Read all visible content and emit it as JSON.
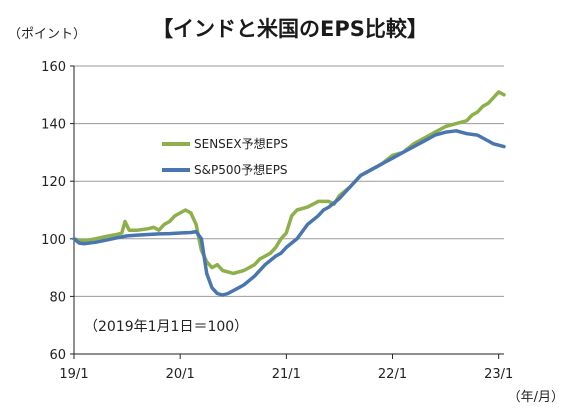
{
  "chart_data": {
    "type": "line",
    "title": "【インドと米国のEPS比較】",
    "ylabel": "（ポイント）",
    "xunit": "（年/月）",
    "note": "（2019年1月1日＝100）",
    "ylim": [
      60,
      160
    ],
    "yticks": [
      60,
      80,
      100,
      120,
      140,
      160
    ],
    "xlim": [
      2019.0,
      2023.05
    ],
    "xticks": [
      {
        "value": 2019.0,
        "label": "19/1"
      },
      {
        "value": 2020.0,
        "label": "20/1"
      },
      {
        "value": 2021.0,
        "label": "21/1"
      },
      {
        "value": 2022.0,
        "label": "22/1"
      },
      {
        "value": 2023.0,
        "label": "23/1"
      }
    ],
    "grid": true,
    "legend": "upper-left",
    "series": [
      {
        "name": "SENSEX予想EPS",
        "color": "#8DB04A",
        "points": [
          [
            2019.0,
            100
          ],
          [
            2019.05,
            99.5
          ],
          [
            2019.1,
            99.3
          ],
          [
            2019.2,
            100
          ],
          [
            2019.3,
            100.8
          ],
          [
            2019.4,
            101.5
          ],
          [
            2019.45,
            102
          ],
          [
            2019.48,
            106
          ],
          [
            2019.52,
            103
          ],
          [
            2019.6,
            103
          ],
          [
            2019.7,
            103.5
          ],
          [
            2019.75,
            104
          ],
          [
            2019.8,
            103
          ],
          [
            2019.85,
            105
          ],
          [
            2019.9,
            106
          ],
          [
            2019.95,
            108
          ],
          [
            2020.0,
            109
          ],
          [
            2020.05,
            110
          ],
          [
            2020.1,
            109
          ],
          [
            2020.15,
            105
          ],
          [
            2020.2,
            96
          ],
          [
            2020.25,
            92
          ],
          [
            2020.3,
            90
          ],
          [
            2020.35,
            91
          ],
          [
            2020.4,
            89
          ],
          [
            2020.45,
            88.5
          ],
          [
            2020.5,
            88
          ],
          [
            2020.55,
            88.5
          ],
          [
            2020.6,
            89
          ],
          [
            2020.65,
            90
          ],
          [
            2020.7,
            91
          ],
          [
            2020.75,
            93
          ],
          [
            2020.8,
            94
          ],
          [
            2020.85,
            95
          ],
          [
            2020.9,
            97
          ],
          [
            2020.95,
            100
          ],
          [
            2021.0,
            102
          ],
          [
            2021.05,
            108
          ],
          [
            2021.1,
            110
          ],
          [
            2021.2,
            111
          ],
          [
            2021.3,
            113
          ],
          [
            2021.4,
            113
          ],
          [
            2021.45,
            112
          ],
          [
            2021.5,
            115
          ],
          [
            2021.6,
            118
          ],
          [
            2021.7,
            122
          ],
          [
            2021.8,
            124
          ],
          [
            2021.9,
            126
          ],
          [
            2022.0,
            129
          ],
          [
            2022.1,
            130
          ],
          [
            2022.2,
            133
          ],
          [
            2022.3,
            135
          ],
          [
            2022.4,
            137
          ],
          [
            2022.5,
            139
          ],
          [
            2022.6,
            140
          ],
          [
            2022.7,
            141
          ],
          [
            2022.75,
            143
          ],
          [
            2022.8,
            144
          ],
          [
            2022.85,
            146
          ],
          [
            2022.9,
            147
          ],
          [
            2022.95,
            149
          ],
          [
            2023.0,
            151
          ],
          [
            2023.05,
            150
          ]
        ]
      },
      {
        "name": "S&P500予想EPS",
        "color": "#4A76B0",
        "points": [
          [
            2019.0,
            100
          ],
          [
            2019.05,
            98.5
          ],
          [
            2019.1,
            98.3
          ],
          [
            2019.2,
            98.8
          ],
          [
            2019.3,
            99.5
          ],
          [
            2019.4,
            100.3
          ],
          [
            2019.5,
            101
          ],
          [
            2019.6,
            101.3
          ],
          [
            2019.7,
            101.5
          ],
          [
            2019.8,
            101.7
          ],
          [
            2019.9,
            101.8
          ],
          [
            2020.0,
            102
          ],
          [
            2020.1,
            102.2
          ],
          [
            2020.15,
            102.5
          ],
          [
            2020.2,
            100
          ],
          [
            2020.25,
            88
          ],
          [
            2020.3,
            83
          ],
          [
            2020.35,
            81
          ],
          [
            2020.4,
            80.5
          ],
          [
            2020.45,
            81
          ],
          [
            2020.5,
            82
          ],
          [
            2020.55,
            83
          ],
          [
            2020.6,
            84
          ],
          [
            2020.7,
            87
          ],
          [
            2020.8,
            91
          ],
          [
            2020.9,
            94
          ],
          [
            2020.95,
            95
          ],
          [
            2021.0,
            97
          ],
          [
            2021.1,
            100
          ],
          [
            2021.2,
            105
          ],
          [
            2021.3,
            108
          ],
          [
            2021.35,
            110
          ],
          [
            2021.4,
            111
          ],
          [
            2021.5,
            114
          ],
          [
            2021.6,
            118
          ],
          [
            2021.7,
            122
          ],
          [
            2021.8,
            124
          ],
          [
            2021.9,
            126
          ],
          [
            2022.0,
            128
          ],
          [
            2022.1,
            130
          ],
          [
            2022.2,
            132
          ],
          [
            2022.3,
            134
          ],
          [
            2022.4,
            136
          ],
          [
            2022.5,
            137
          ],
          [
            2022.6,
            137.5
          ],
          [
            2022.7,
            136.5
          ],
          [
            2022.8,
            136
          ],
          [
            2022.85,
            135
          ],
          [
            2022.9,
            134
          ],
          [
            2022.95,
            133
          ],
          [
            2023.0,
            132.5
          ],
          [
            2023.05,
            132
          ]
        ]
      }
    ]
  }
}
